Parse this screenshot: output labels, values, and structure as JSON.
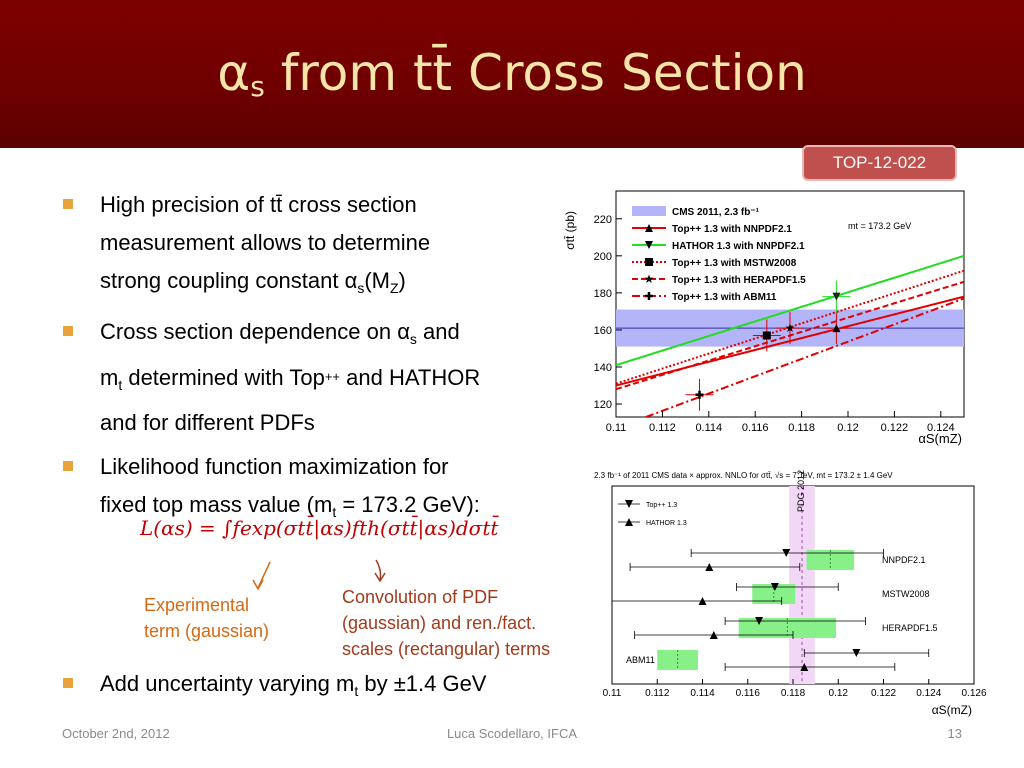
{
  "slide": {
    "title_main": "α",
    "title_sub": "s",
    "title_rest": " from tt̄ Cross Section",
    "badge": "TOP-12-022"
  },
  "bullets": {
    "b1_line1": "High precision of tt̄ cross section",
    "b1_line2": "measurement allows to determine",
    "b1_line3a": "strong coupling constant α",
    "b1_sub_s": "s",
    "b1_line3b": "(M",
    "b1_sub_z": "Z",
    "b1_line3c": ")",
    "b2_line1a": "Cross section dependence on α",
    "b2_sub_s": "s",
    "b2_line1b": " and",
    "b2_line2a": "m",
    "b2_sub_t": "t",
    "b2_line2b": " determined with Top",
    "b2_plusplus": "++",
    "b2_line2c": " and HATHOR",
    "b2_line3": "and for different PDFs",
    "b3_line1": "Likelihood function maximization for",
    "b3_line2a": "fixed top mass value (m",
    "b3_sub_t": "t",
    "b3_line2b": " = 173.2 GeV):",
    "b4a": "Add uncertainty varying m",
    "b4_sub_t": "t",
    "b4b": " by ±1.4 GeV"
  },
  "formula": {
    "text": "L(αs) = ∫fexp(σtt̄|αs)fth(σtt̄|αs)dσtt̄"
  },
  "notes": {
    "exp_line1": "Experimental",
    "exp_line2": "term (gaussian)",
    "conv_line1": "Convolution of PDF",
    "conv_line2": "(gaussian) and ren./fact.",
    "conv_line3": "scales (rectangular) terms"
  },
  "footer": {
    "date": "October 2nd, 2012",
    "author": "Luca Scodellaro, IFCA",
    "page": "13"
  },
  "colors": {
    "header": "#7e0000",
    "title": "#f6e4a8",
    "bullet": "#e8a33c",
    "formula": "#c00000",
    "badge": "#c0504d"
  },
  "chart_data": [
    {
      "type": "line",
      "ylabel": "σtt̄ (pb)",
      "xlabel": "αS(mZ)",
      "x_ticks": [
        "0.11",
        "0.112",
        "0.114",
        "0.116",
        "0.118",
        "0.12",
        "0.122",
        "0.124"
      ],
      "y_ticks": [
        "120",
        "140",
        "160",
        "180",
        "200",
        "220"
      ],
      "xlim": [
        0.11,
        0.125
      ],
      "ylim": [
        113,
        235
      ],
      "annotation": "mt = 173.2 GeV",
      "legend": [
        "CMS 2011, 2.3 fb⁻¹",
        "Top++ 1.3 with NNPDF2.1",
        "HATHOR 1.3 with NNPDF2.1",
        "Top++ 1.3 with MSTW2008",
        "Top++ 1.3 with HERAPDF1.5",
        "Top++ 1.3 with ABM11"
      ],
      "band": {
        "center": 161,
        "low": 151,
        "high": 171,
        "color": "#b4b4f8"
      },
      "series": [
        {
          "name": "Top++ 1.3 with NNPDF2.1",
          "color": "#e00000",
          "style": "solid",
          "x": [
            0.11,
            0.125
          ],
          "y": [
            130,
            178
          ],
          "marker": "triangle-up",
          "point": [
            0.1195,
            161
          ]
        },
        {
          "name": "HATHOR 1.3 with NNPDF2.1",
          "color": "#22dd22",
          "style": "solid",
          "x": [
            0.11,
            0.125
          ],
          "y": [
            141,
            200
          ],
          "marker": "triangle-down",
          "point": [
            0.1195,
            178
          ]
        },
        {
          "name": "Top++ 1.3 with MSTW2008",
          "color": "#e00000",
          "style": "dotted",
          "x": [
            0.11,
            0.125
          ],
          "y": [
            131,
            192
          ],
          "marker": "square",
          "point": [
            0.1165,
            157
          ]
        },
        {
          "name": "Top++ 1.3 with HERAPDF1.5",
          "color": "#e00000",
          "style": "dashed",
          "x": [
            0.11,
            0.125
          ],
          "y": [
            128,
            186
          ],
          "marker": "star",
          "point": [
            0.1175,
            161
          ]
        },
        {
          "name": "Top++ 1.3 with ABM11",
          "color": "#e00000",
          "style": "dashdot",
          "x": [
            0.11,
            0.125
          ],
          "y": [
            107,
            177
          ],
          "marker": "plus",
          "point": [
            0.1136,
            125
          ]
        }
      ]
    },
    {
      "type": "scatter",
      "header": "2.3 fb⁻¹ of 2011 CMS data × approx. NNLO for σtt̄, √s = 7 TeV, mt = 173.2 ± 1.4 GeV",
      "xlabel": "αS(mZ)",
      "x_ticks": [
        "0.11",
        "0.112",
        "0.114",
        "0.116",
        "0.118",
        "0.12",
        "0.122",
        "0.124",
        "0.126"
      ],
      "xlim": [
        0.11,
        0.126
      ],
      "legend": [
        "Top++ 1.3",
        "HATHOR 1.3"
      ],
      "pdg_label": "PDG 2012",
      "pdg": {
        "value": 0.1184,
        "low": 0.1181,
        "high": 0.1187
      },
      "rows": [
        {
          "label": "NNPDF2.1",
          "box": [
            0.1186,
            0.1207
          ],
          "top": {
            "value": 0.1143,
            "err": [
              0.1108,
              0.1183
            ]
          },
          "hathor": {
            "value": 0.1177,
            "err": [
              0.1135,
              0.122
            ]
          }
        },
        {
          "label": "MSTW2008",
          "box": [
            0.1162,
            0.1181
          ],
          "top": {
            "value": 0.114,
            "err": [
              0.11,
              0.1175
            ]
          },
          "hathor": {
            "value": 0.1172,
            "err": [
              0.1155,
              0.12
            ]
          }
        },
        {
          "label": "HERAPDF1.5",
          "box": [
            0.1156,
            0.1199
          ],
          "top": {
            "value": 0.1145,
            "err": [
              0.111,
              0.118
            ]
          },
          "hathor": {
            "value": 0.1165,
            "err": [
              0.115,
              0.1212
            ]
          }
        },
        {
          "label": "ABM11",
          "box": [
            0.112,
            0.1138
          ],
          "top": {
            "value": 0.1185,
            "err": [
              0.115,
              0.1225
            ]
          },
          "hathor": {
            "value": 0.1208,
            "err": [
              0.1185,
              0.124
            ]
          }
        }
      ]
    }
  ]
}
